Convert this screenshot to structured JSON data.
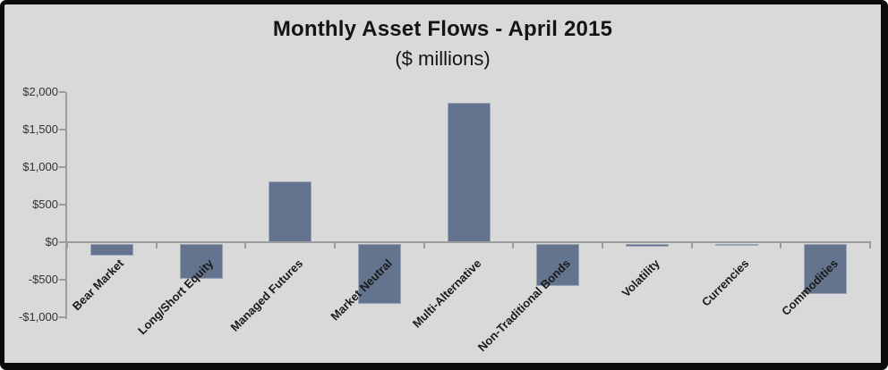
{
  "chart_data": {
    "type": "bar",
    "title": "Monthly Asset Flows - April 2015",
    "subtitle": "($ millions)",
    "categories": [
      "Bear Market",
      "Long/Short Equity",
      "Managed Futures",
      "Market Neutral",
      "Multi-Alternative",
      "Non-Traditional Bonds",
      "Volatility",
      "Currencies",
      "Commodities"
    ],
    "values": [
      -150,
      -470,
      810,
      -800,
      1860,
      -560,
      -30,
      -20,
      -670
    ],
    "xlabel": "",
    "ylabel": "",
    "ylim": [
      -1000,
      2000
    ],
    "y_ticks": [
      {
        "label": "$2,000",
        "value": 2000
      },
      {
        "label": "$1,500",
        "value": 1500
      },
      {
        "label": "$1,000",
        "value": 1000
      },
      {
        "label": "$500",
        "value": 500
      },
      {
        "label": "$0",
        "value": 0
      },
      {
        "label": "-$500",
        "value": -500
      },
      {
        "label": "-$1,000",
        "value": -1000
      }
    ],
    "grid": false,
    "legend": false,
    "colors": {
      "bar": "#64748E",
      "background": "#D9D9D9",
      "axis": "#9B9B9B",
      "frame_border": "#0B0B0B",
      "text": "#141414"
    }
  }
}
